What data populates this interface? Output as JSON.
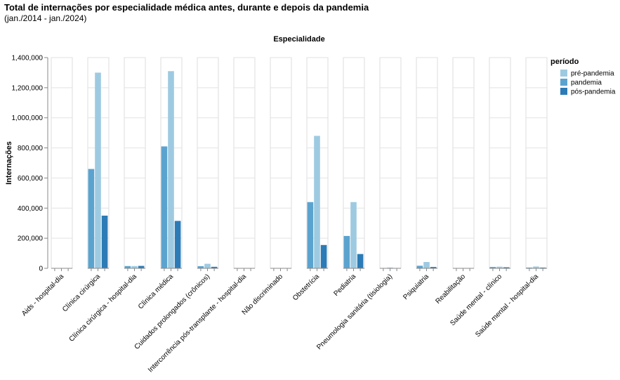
{
  "chart_data": {
    "type": "bar",
    "title": "Total de internações por especialidade médica antes, durante e depois da pandemia",
    "subtitle": "(jan./2014 - jan./2024)",
    "facet_label": "Especialidade",
    "ylabel": "Internações",
    "ylim": [
      0,
      1400000
    ],
    "yticks": [
      "0",
      "200,000",
      "400,000",
      "600,000",
      "800,000",
      "1,000,000",
      "1,200,000",
      "1,400,000"
    ],
    "ytick_values": [
      0,
      200000,
      400000,
      600000,
      800000,
      1000000,
      1200000,
      1400000
    ],
    "grid": true,
    "legend_title": "período",
    "legend_position": "right",
    "period_order": [
      "pandemia",
      "pré-pandemia",
      "pós-pandemia"
    ],
    "colors": {
      "pré-pandemia": "#9ecae1",
      "pandemia": "#5ba3cf",
      "pós-pandemia": "#2c7bb6"
    },
    "legend": [
      "pré-pandemia",
      "pandemia",
      "pós-pandemia"
    ],
    "categories": [
      "Aids - hospital-dia",
      "Clínica cirúrgica",
      "Clínica cirúrgica - hospital-dia",
      "Clínica médica",
      "Cuidados prolongados (crônicos)",
      "Intercorrência pós-transplante - hospital-dia",
      "Não discriminado",
      "Obstetrícia",
      "Pediatria",
      "Pneumologia sanitária (tisiologia)",
      "Psiquiatria",
      "Reabilitação",
      "Saúde mental - clínico",
      "Saúde mental - hospital-dia"
    ],
    "series": [
      {
        "name": "pandemia",
        "values": [
          500,
          660000,
          15000,
          810000,
          14000,
          300,
          200,
          440000,
          215000,
          2000,
          17000,
          1000,
          9000,
          5000
        ]
      },
      {
        "name": "pré-pandemia",
        "values": [
          1500,
          1300000,
          15000,
          1310000,
          30000,
          600,
          500,
          880000,
          440000,
          5000,
          42000,
          2000,
          11000,
          12000
        ]
      },
      {
        "name": "pós-pandemia",
        "values": [
          300,
          350000,
          16000,
          315000,
          10000,
          200,
          200,
          155000,
          95000,
          1000,
          9000,
          800,
          7000,
          5000
        ]
      }
    ]
  }
}
